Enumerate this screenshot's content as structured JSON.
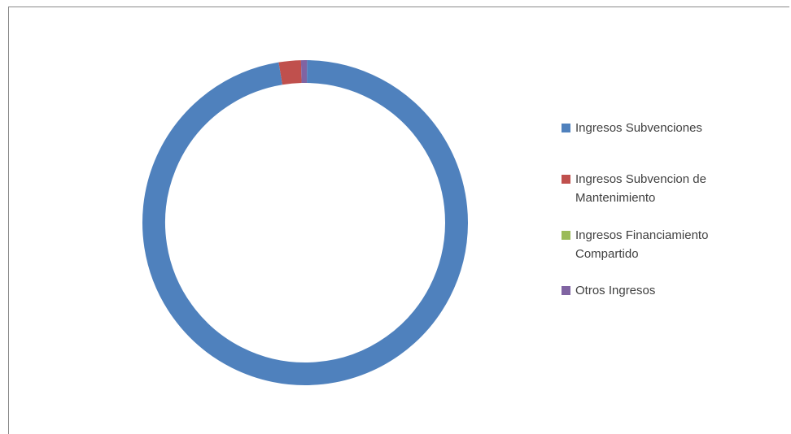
{
  "chart_data": {
    "type": "pie",
    "style": "donut",
    "title": "",
    "legend_position": "right",
    "categories": [
      "Ingresos Subvenciones",
      "Ingresos Subvencion de Mantenimiento",
      "Ingresos Financiamiento Compartido",
      "Otros Ingresos"
    ],
    "values": [
      97.2,
      2.2,
      0.0,
      0.6
    ],
    "colors": [
      "#4f81bd",
      "#c0504d",
      "#9bbb59",
      "#8064a2"
    ]
  },
  "legend": {
    "items": [
      {
        "label": "Ingresos Subvenciones",
        "color": "#4f81bd"
      },
      {
        "label": "Ingresos Subvencion de Mantenimiento",
        "color": "#c0504d"
      },
      {
        "label": "Ingresos Financiamiento Compartido",
        "color": "#9bbb59"
      },
      {
        "label": "Otros Ingresos",
        "color": "#8064a2"
      }
    ]
  }
}
